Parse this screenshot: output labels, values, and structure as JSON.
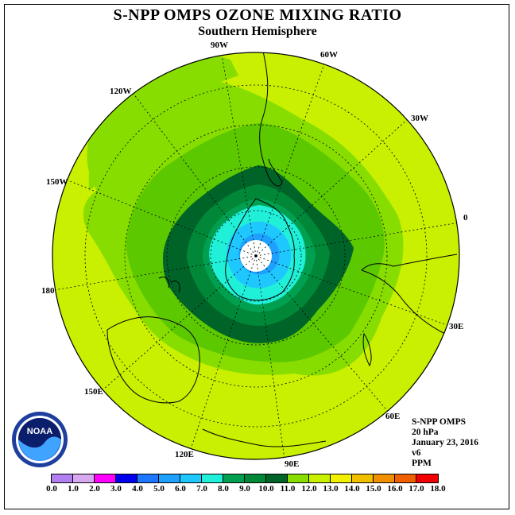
{
  "title": "S-NPP OMPS OZONE MIXING RATIO",
  "subtitle": "Southern Hemisphere",
  "longitude_labels": [
    "90W",
    "60W",
    "30W",
    "0",
    "30E",
    "60E",
    "90E",
    "120E",
    "150E",
    "180",
    "150W",
    "120W"
  ],
  "info": {
    "instrument": "S-NPP OMPS",
    "level": "20 hPa",
    "date": "January 23, 2016",
    "version": "v6",
    "units": "PPM"
  },
  "logo": {
    "text": "NOAA",
    "icon": "noaa-logo-icon"
  },
  "colorbar": {
    "ticks": [
      "0.0",
      "1.0",
      "2.0",
      "3.0",
      "4.0",
      "5.0",
      "6.0",
      "7.0",
      "8.0",
      "9.0",
      "10.0",
      "11.0",
      "12.0",
      "13.0",
      "14.0",
      "15.0",
      "16.0",
      "17.0",
      "18.0"
    ],
    "colors": [
      "#b080f0",
      "#d8a8f0",
      "#ff00ff",
      "#0000ee",
      "#1e78ff",
      "#1ea0ff",
      "#1ec8ff",
      "#20f0d8",
      "#00a050",
      "#008838",
      "#006428",
      "#88dd00",
      "#c8f000",
      "#f0f000",
      "#f0c000",
      "#f09000",
      "#f06000",
      "#f00000",
      "#a05030"
    ]
  },
  "chart_data": {
    "type": "heatmap",
    "projection": "south polar stereographic",
    "variable": "ozone mixing ratio",
    "units": "PPM",
    "pressure_level": "20 hPa",
    "date": "January 23, 2016",
    "range": [
      0,
      18
    ],
    "contour_bands_approx": [
      {
        "min": 5.0,
        "max": 6.0,
        "region": "south pole"
      },
      {
        "min": 6.0,
        "max": 7.0,
        "region": "near pole"
      },
      {
        "min": 7.0,
        "max": 8.0,
        "region": "over Antarctica"
      },
      {
        "min": 8.0,
        "max": 9.0,
        "region": "polar ring"
      },
      {
        "min": 9.0,
        "max": 10.0,
        "region": "polar ring"
      },
      {
        "min": 10.0,
        "max": 11.0,
        "region": "high-latitude ring"
      },
      {
        "min": 11.0,
        "max": 12.0,
        "region": "mid-latitude ring"
      },
      {
        "min": 12.0,
        "max": 13.0,
        "region": "outer latitudes"
      }
    ]
  }
}
